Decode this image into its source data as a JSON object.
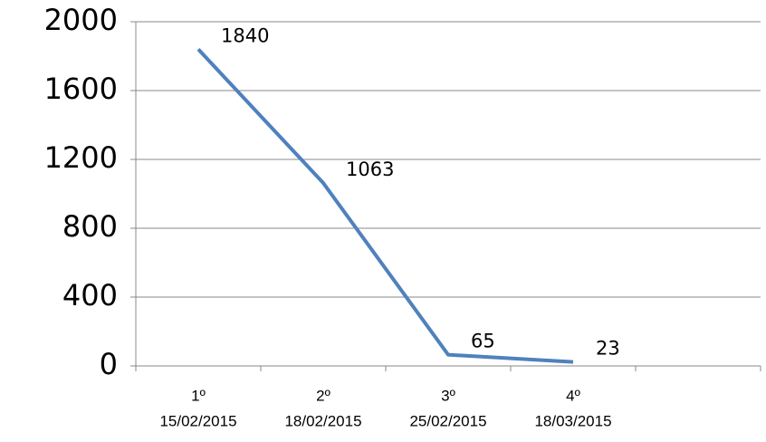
{
  "chart_data": {
    "type": "line",
    "categories": [
      [
        "1º",
        "15/02/2015"
      ],
      [
        "2º",
        "18/02/2015"
      ],
      [
        "3º",
        "25/02/2015"
      ],
      [
        "4º",
        "18/03/2015"
      ],
      null
    ],
    "series": [
      {
        "color": "#4f81bd",
        "values": [
          1840,
          1063,
          65,
          23,
          null
        ]
      }
    ],
    "ylim": [
      0,
      2000
    ],
    "yticks": [
      0,
      400,
      800,
      1200,
      1600,
      2000
    ],
    "grid": true,
    "data_labels": true
  }
}
